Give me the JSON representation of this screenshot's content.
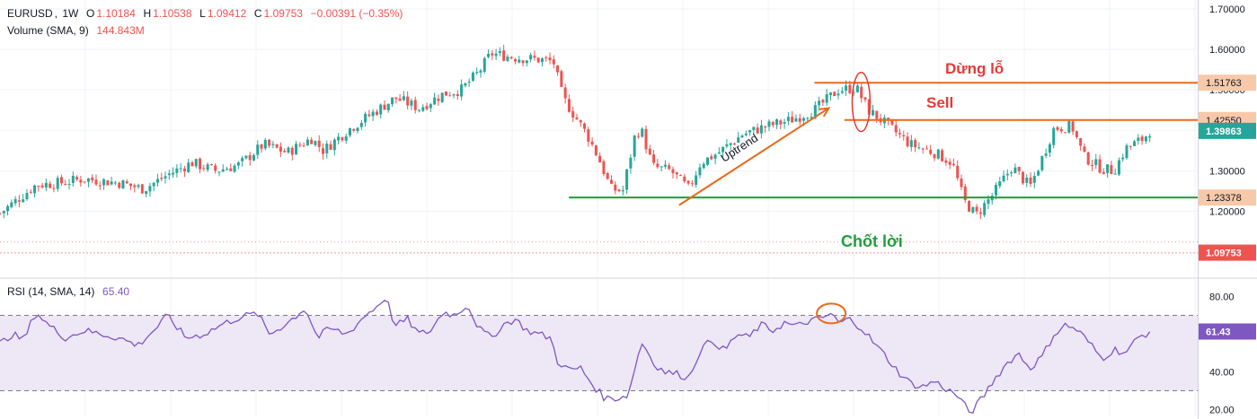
{
  "header": {
    "symbol": "EURUSD",
    "interval": "1W",
    "open_label": "O",
    "open": "1.10184",
    "high_label": "H",
    "high": "1.10538",
    "low_label": "L",
    "low": "1.09412",
    "close_label": "C",
    "close": "1.09753",
    "change": "−0.00391 (−0.35%)",
    "volume_label": "Volume (SMA, 9)",
    "volume_value": "144.843M",
    "rsi_label": "RSI (14, SMA, 14)",
    "rsi_value": "65.40"
  },
  "colors": {
    "up": "#26a69a",
    "down": "#ef5350",
    "rsi": "#7e57c2",
    "rsi_band": "#ede7f6",
    "annot_red": "#e53935",
    "annot_orange": "#e86a1a",
    "annot_green": "#1e9e3e",
    "label_orange_bg": "#f8c9a8",
    "current_price_bg": "#26a69a",
    "last_close_bg": "#ef5350"
  },
  "chart_data": [
    {
      "type": "candlestick",
      "title": "EURUSD, 1W",
      "ylim": [
        1.09,
        1.7
      ],
      "y_ticks": [
        "1.20000",
        "1.30000",
        "1.40000",
        "1.50000",
        "1.60000",
        "1.70000"
      ],
      "price_labels": [
        {
          "value": 1.51763,
          "text": "1.51763",
          "style": "orange"
        },
        {
          "value": 1.4255,
          "text": "1.42550",
          "style": "orange"
        },
        {
          "value": 1.39863,
          "text": "1.39863",
          "style": "current"
        },
        {
          "value": 1.23378,
          "text": "1.23378",
          "style": "orange"
        },
        {
          "value": 1.09753,
          "text": "1.09753",
          "style": "last"
        }
      ],
      "horizontal_lines": [
        {
          "value": 1.51763,
          "label": "Dừng lỗ",
          "color": "orange",
          "x_start": 0.68
        },
        {
          "value": 1.4255,
          "label": "Sell",
          "color": "orange",
          "x_start": 0.705
        },
        {
          "value": 1.23378,
          "label": "Chốt lời",
          "color": "green",
          "x_start": 0.475
        }
      ],
      "dotted_levels": [
        1.124,
        1.097
      ],
      "trendline": {
        "label": "Uptrend",
        "from": {
          "t": 0.567,
          "price": 1.215
        },
        "to": {
          "t": 0.692,
          "price": 1.455
        }
      },
      "highlight_ellipse": {
        "t": 0.719,
        "price_center": 1.47,
        "price_half": 0.073
      },
      "close_path": [
        [
          0.0,
          1.195
        ],
        [
          0.03,
          1.265
        ],
        [
          0.05,
          1.27
        ],
        [
          0.07,
          1.28
        ],
        [
          0.1,
          1.27
        ],
        [
          0.12,
          1.255
        ],
        [
          0.14,
          1.29
        ],
        [
          0.16,
          1.32
        ],
        [
          0.18,
          1.3
        ],
        [
          0.2,
          1.315
        ],
        [
          0.22,
          1.365
        ],
        [
          0.24,
          1.345
        ],
        [
          0.26,
          1.38
        ],
        [
          0.27,
          1.35
        ],
        [
          0.29,
          1.4
        ],
        [
          0.31,
          1.44
        ],
        [
          0.33,
          1.48
        ],
        [
          0.35,
          1.455
        ],
        [
          0.37,
          1.49
        ],
        [
          0.385,
          1.5
        ],
        [
          0.4,
          1.545
        ],
        [
          0.41,
          1.59
        ],
        [
          0.43,
          1.58
        ],
        [
          0.45,
          1.575
        ],
        [
          0.462,
          1.57
        ],
        [
          0.47,
          1.48
        ],
        [
          0.48,
          1.435
        ],
        [
          0.49,
          1.39
        ],
        [
          0.5,
          1.33
        ],
        [
          0.51,
          1.255
        ],
        [
          0.52,
          1.25
        ],
        [
          0.53,
          1.385
        ],
        [
          0.535,
          1.405
        ],
        [
          0.545,
          1.31
        ],
        [
          0.56,
          1.3
        ],
        [
          0.575,
          1.255
        ],
        [
          0.585,
          1.32
        ],
        [
          0.6,
          1.345
        ],
        [
          0.62,
          1.39
        ],
        [
          0.64,
          1.41
        ],
        [
          0.66,
          1.425
        ],
        [
          0.68,
          1.45
        ],
        [
          0.7,
          1.5
        ],
        [
          0.715,
          1.505
        ],
        [
          0.725,
          1.45
        ],
        [
          0.74,
          1.415
        ],
        [
          0.76,
          1.365
        ],
        [
          0.78,
          1.345
        ],
        [
          0.795,
          1.32
        ],
        [
          0.805,
          1.225
        ],
        [
          0.815,
          1.19
        ],
        [
          0.83,
          1.245
        ],
        [
          0.845,
          1.31
        ],
        [
          0.86,
          1.26
        ],
        [
          0.87,
          1.33
        ],
        [
          0.88,
          1.405
        ],
        [
          0.895,
          1.41
        ],
        [
          0.905,
          1.335
        ],
        [
          0.92,
          1.305
        ],
        [
          0.93,
          1.3
        ],
        [
          0.94,
          1.355
        ],
        [
          0.955,
          1.38
        ],
        [
          0.96,
          1.399
        ]
      ]
    },
    {
      "type": "line",
      "title": "RSI (14, SMA, 14)",
      "ylim": [
        15,
        85
      ],
      "y_ticks": [
        "20.00",
        "40.00",
        "60.00",
        "80.00"
      ],
      "band": [
        30,
        70
      ],
      "current": {
        "value": 61.43,
        "text": "61.43"
      },
      "highlight_circle": {
        "t": 0.694,
        "value": 71
      },
      "series": [
        {
          "name": "RSI",
          "points": [
            [
              0.0,
              55
            ],
            [
              0.01,
              60
            ],
            [
              0.02,
              57
            ],
            [
              0.03,
              72
            ],
            [
              0.04,
              65
            ],
            [
              0.055,
              58
            ],
            [
              0.07,
              62
            ],
            [
              0.085,
              60
            ],
            [
              0.1,
              58
            ],
            [
              0.115,
              54
            ],
            [
              0.13,
              63
            ],
            [
              0.14,
              70
            ],
            [
              0.155,
              58
            ],
            [
              0.17,
              60
            ],
            [
              0.185,
              65
            ],
            [
              0.2,
              69
            ],
            [
              0.215,
              71
            ],
            [
              0.225,
              60
            ],
            [
              0.24,
              66
            ],
            [
              0.255,
              74
            ],
            [
              0.265,
              58
            ],
            [
              0.275,
              63
            ],
            [
              0.29,
              60
            ],
            [
              0.305,
              70
            ],
            [
              0.315,
              75
            ],
            [
              0.322,
              80
            ],
            [
              0.33,
              64
            ],
            [
              0.34,
              68
            ],
            [
              0.35,
              60
            ],
            [
              0.36,
              62
            ],
            [
              0.37,
              72
            ],
            [
              0.38,
              70
            ],
            [
              0.39,
              76
            ],
            [
              0.4,
              63
            ],
            [
              0.41,
              58
            ],
            [
              0.42,
              65
            ],
            [
              0.43,
              68
            ],
            [
              0.44,
              62
            ],
            [
              0.45,
              60
            ],
            [
              0.46,
              58
            ],
            [
              0.465,
              46
            ],
            [
              0.475,
              41
            ],
            [
              0.485,
              42
            ],
            [
              0.495,
              33
            ],
            [
              0.505,
              26
            ],
            [
              0.515,
              26
            ],
            [
              0.525,
              28
            ],
            [
              0.532,
              48
            ],
            [
              0.537,
              56
            ],
            [
              0.545,
              45
            ],
            [
              0.555,
              40
            ],
            [
              0.565,
              39
            ],
            [
              0.575,
              37
            ],
            [
              0.585,
              52
            ],
            [
              0.595,
              57
            ],
            [
              0.605,
              51
            ],
            [
              0.615,
              60
            ],
            [
              0.625,
              58
            ],
            [
              0.635,
              65
            ],
            [
              0.645,
              62
            ],
            [
              0.655,
              66
            ],
            [
              0.665,
              64
            ],
            [
              0.675,
              67
            ],
            [
              0.685,
              68
            ],
            [
              0.694,
              71
            ],
            [
              0.7,
              66
            ],
            [
              0.71,
              68
            ],
            [
              0.72,
              63
            ],
            [
              0.73,
              55
            ],
            [
              0.74,
              48
            ],
            [
              0.75,
              40
            ],
            [
              0.76,
              34
            ],
            [
              0.77,
              32
            ],
            [
              0.78,
              35
            ],
            [
              0.79,
              31
            ],
            [
              0.8,
              27
            ],
            [
              0.81,
              18
            ],
            [
              0.82,
              26
            ],
            [
              0.83,
              36
            ],
            [
              0.84,
              44
            ],
            [
              0.85,
              50
            ],
            [
              0.86,
              42
            ],
            [
              0.87,
              48
            ],
            [
              0.88,
              60
            ],
            [
              0.89,
              65
            ],
            [
              0.9,
              62
            ],
            [
              0.91,
              55
            ],
            [
              0.92,
              47
            ],
            [
              0.93,
              52
            ],
            [
              0.94,
              50
            ],
            [
              0.95,
              58
            ],
            [
              0.96,
              61.4
            ]
          ]
        }
      ]
    }
  ],
  "annotations": {
    "stop_loss": "Dừng lỗ",
    "sell": "Sell",
    "take_profit": "Chốt lời",
    "uptrend": "Uptrend"
  }
}
